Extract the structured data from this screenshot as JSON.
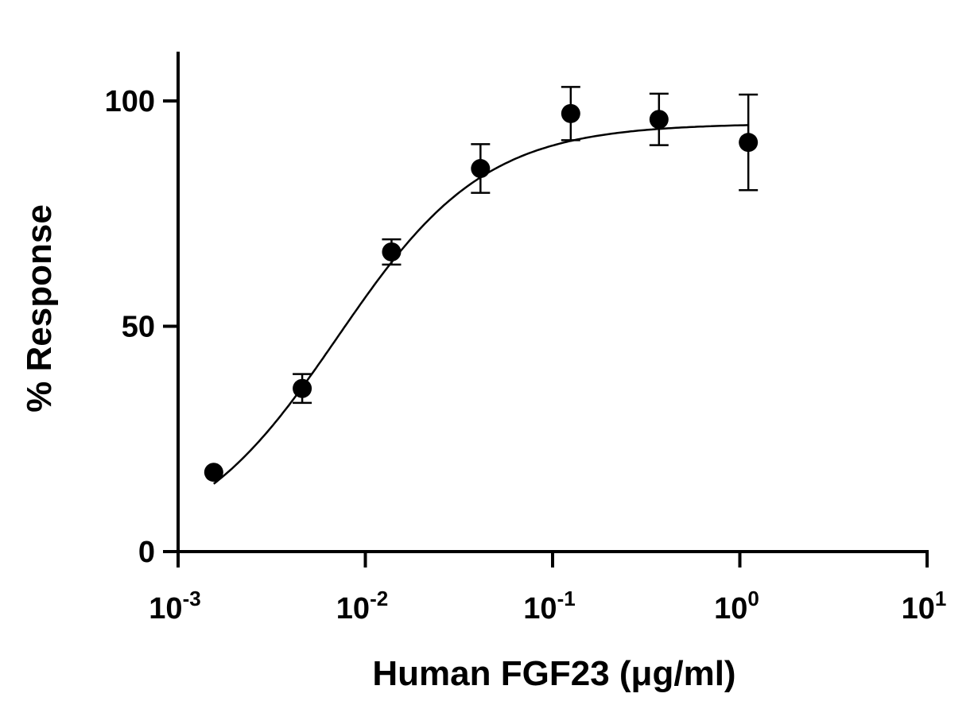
{
  "chart_data": {
    "type": "scatter",
    "title": "",
    "xlabel": "Human FGF23 (μg/ml)",
    "ylabel": "% Response",
    "x_scale": "log",
    "xlim": [
      0.001,
      10
    ],
    "ylim": [
      0,
      110
    ],
    "x_ticks": [
      {
        "base": "10",
        "exp": "-3",
        "value": 0.001
      },
      {
        "base": "10",
        "exp": "-2",
        "value": 0.01
      },
      {
        "base": "10",
        "exp": "-1",
        "value": 0.1
      },
      {
        "base": "10",
        "exp": "0",
        "value": 1
      },
      {
        "base": "10",
        "exp": "1",
        "value": 10
      }
    ],
    "y_ticks": [
      "0",
      "50",
      "100"
    ],
    "grid": false,
    "legend": "none",
    "points": [
      {
        "x": 0.00155,
        "y": 17.6,
        "err": 0
      },
      {
        "x": 0.0046,
        "y": 36.2,
        "err": 3.2
      },
      {
        "x": 0.0138,
        "y": 66.5,
        "err": 2.8
      },
      {
        "x": 0.0412,
        "y": 85.0,
        "err": 5.4
      },
      {
        "x": 0.125,
        "y": 97.2,
        "err": 5.9
      },
      {
        "x": 0.37,
        "y": 95.9,
        "err": 5.7
      },
      {
        "x": 1.11,
        "y": 90.8,
        "err": 10.6
      }
    ],
    "fit": {
      "model": "4PL",
      "bottom": 0,
      "top": 95,
      "logEC50": -2.15,
      "hill": 1.1
    },
    "color": "#000000"
  }
}
